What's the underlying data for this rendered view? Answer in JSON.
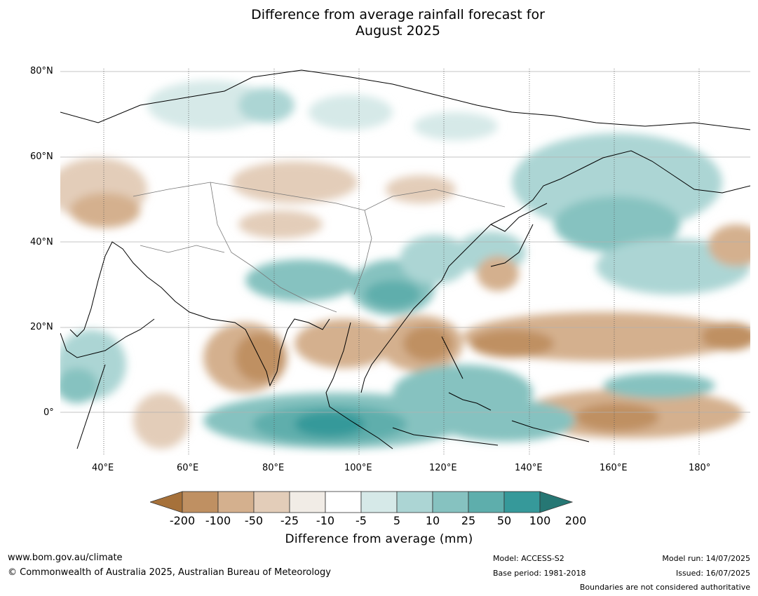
{
  "title_line1": "Difference from average rainfall forecast for",
  "title_line2": "August 2025",
  "lat_labels": [
    "80°N",
    "60°N",
    "40°N",
    "20°N",
    "0°"
  ],
  "lon_labels": [
    "40°E",
    "60°E",
    "80°E",
    "100°E",
    "120°E",
    "140°E",
    "160°E",
    "180°"
  ],
  "colorbar": {
    "ticks": [
      "-200",
      "-100",
      "-50",
      "-25",
      "-10",
      "-5",
      "5",
      "10",
      "25",
      "50",
      "100",
      "200"
    ],
    "colors": [
      "#a6713a",
      "#bf9062",
      "#d4b08e",
      "#e3cdb9",
      "#f1ece6",
      "#ffffff",
      "#d6e9e8",
      "#acd5d4",
      "#86c2c0",
      "#5eaeac",
      "#36999a",
      "#267774"
    ],
    "title": "Difference from average (mm)"
  },
  "footer": {
    "website": "www.bom.gov.au/climate",
    "copyright": "© Commonwealth of Australia 2025, Australian Bureau of Meteorology",
    "model": "Model: ACCESS-S2",
    "base_period": "Base period: 1981-2018",
    "model_run": "Model run: 14/07/2025",
    "issued": "Issued: 16/07/2025",
    "disclaimer": "Boundaries are not considered authoritative"
  }
}
